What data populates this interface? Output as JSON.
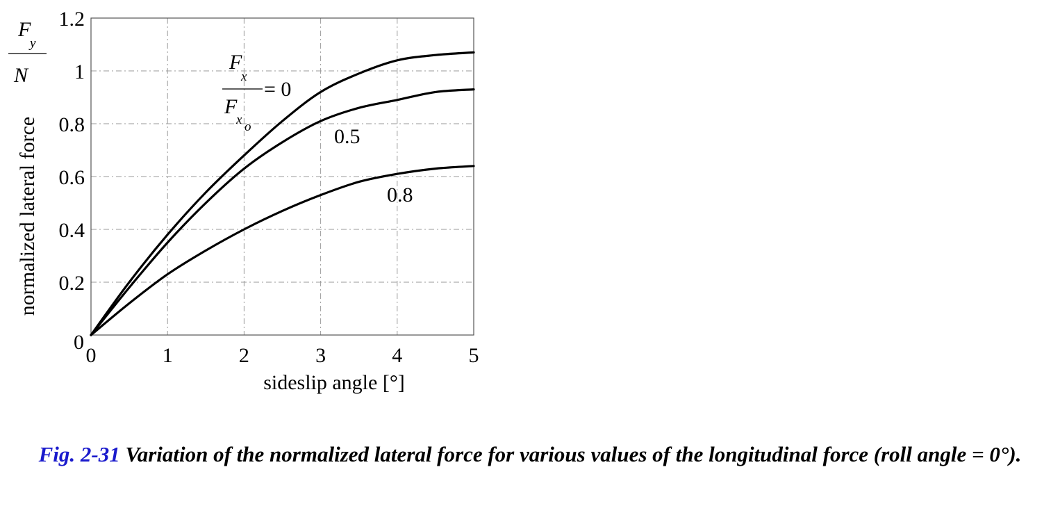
{
  "chart_data": {
    "type": "line",
    "xlabel": "sideslip angle [°]",
    "ylabel": "normalized lateral force",
    "ylabel_fraction": {
      "numerator": "F",
      "numerator_sub": "y",
      "denominator": "N"
    },
    "xlim": [
      0,
      5
    ],
    "ylim": [
      0,
      1.2
    ],
    "grid": true,
    "grid_style": "dash-dot",
    "x_ticks": [
      0,
      1,
      2,
      3,
      4,
      5
    ],
    "x_tick_labels": [
      "0",
      "1",
      "2",
      "3",
      "4",
      "5"
    ],
    "y_ticks": [
      0,
      0.2,
      0.4,
      0.6,
      0.8,
      1,
      1.2
    ],
    "y_tick_labels": [
      "0",
      "0.2",
      "0.4",
      "0.6",
      "0.8",
      "1",
      "1.2"
    ],
    "param_label": {
      "numerator": "F",
      "numerator_sub": "x",
      "denominator": "F",
      "denominator_sub": "x",
      "denominator_subsub": "o",
      "eq": "= 0"
    },
    "series": [
      {
        "name": "0",
        "x": [
          0,
          0.5,
          1,
          1.5,
          2,
          2.5,
          3,
          3.5,
          4,
          4.5,
          5
        ],
        "y": [
          0,
          0.2,
          0.38,
          0.54,
          0.68,
          0.81,
          0.92,
          0.99,
          1.04,
          1.06,
          1.07
        ]
      },
      {
        "name": "0.5",
        "x": [
          0,
          0.5,
          1,
          1.5,
          2,
          2.5,
          3,
          3.5,
          4,
          4.5,
          5
        ],
        "y": [
          0,
          0.18,
          0.35,
          0.5,
          0.63,
          0.73,
          0.81,
          0.86,
          0.89,
          0.92,
          0.93
        ]
      },
      {
        "name": "0.8",
        "x": [
          0,
          0.5,
          1,
          1.5,
          2,
          2.5,
          3,
          3.5,
          4,
          4.5,
          5
        ],
        "y": [
          0,
          0.12,
          0.23,
          0.32,
          0.4,
          0.47,
          0.53,
          0.58,
          0.61,
          0.63,
          0.64
        ]
      }
    ],
    "series_labels": [
      "0.5",
      "0.8"
    ]
  },
  "caption": {
    "fig_number": "Fig. 2-31",
    "text": " Variation of the normalized lateral force for various values of the longitudinal force (roll angle = 0°).",
    "fig_color": "#1a1acc"
  },
  "colors": {
    "line": "#000000",
    "grid": "#9a9a9a"
  }
}
